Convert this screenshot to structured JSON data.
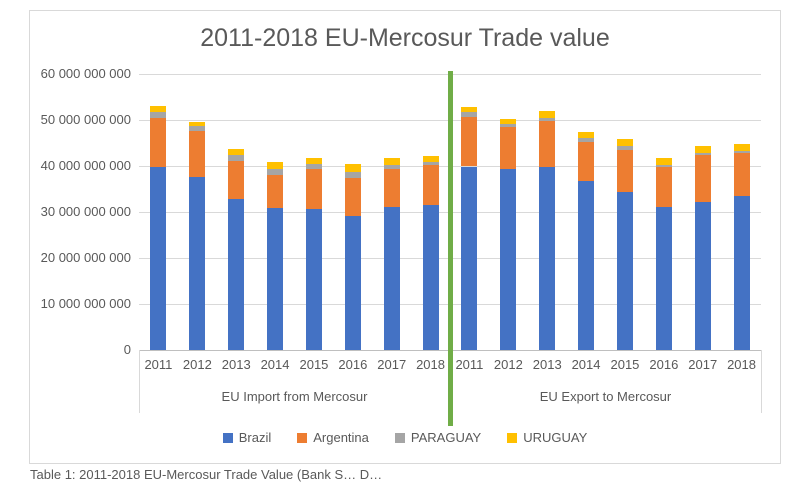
{
  "caption": "Table 1: 2011-2018 EU-Mercosur Trade Value (Bank S… D…",
  "chart_data": {
    "type": "bar",
    "stacked": true,
    "title": "2011-2018 EU-Mercosur Trade value",
    "xlabel": "",
    "ylabel": "",
    "grid": true,
    "y_axis": {
      "min": 0,
      "max": 60000000000,
      "tick_step": 10000000000,
      "tick_labels": [
        "0",
        "10 000 000 000",
        "20 000 000 000",
        "30 000 000 000",
        "40 000 000 000",
        "50 000 000 000",
        "60 000 000 000"
      ]
    },
    "categories": [
      "2011",
      "2012",
      "2013",
      "2014",
      "2015",
      "2016",
      "2017",
      "2018"
    ],
    "groups": [
      {
        "label": "EU Import from Mercosur",
        "series": [
          {
            "name": "Brazil",
            "values": [
              39700000000,
              37700000000,
              32800000000,
              30900000000,
              30700000000,
              29100000000,
              31000000000,
              31500000000
            ]
          },
          {
            "name": "Argentina",
            "values": [
              10800000000,
              9900000000,
              8400000000,
              7200000000,
              8600000000,
              8400000000,
              8400000000,
              8700000000
            ]
          },
          {
            "name": "PARAGUAY",
            "values": [
              1200000000,
              1100000000,
              1200000000,
              1300000000,
              1100000000,
              1300000000,
              900000000,
              700000000
            ]
          },
          {
            "name": "URUGUAY",
            "values": [
              1300000000,
              900000000,
              1200000000,
              1500000000,
              1400000000,
              1600000000,
              1500000000,
              1300000000
            ]
          }
        ]
      },
      {
        "label": "EU Export to Mercosur",
        "series": [
          {
            "name": "Brazil",
            "values": [
              39900000000,
              39400000000,
              39700000000,
              36700000000,
              34300000000,
              31100000000,
              32200000000,
              33400000000
            ]
          },
          {
            "name": "Argentina",
            "values": [
              10800000000,
              9100000000,
              10100000000,
              8500000000,
              9100000000,
              8600000000,
              10100000000,
              9400000000
            ]
          },
          {
            "name": "PARAGUAY",
            "values": [
              1100000000,
              700000000,
              700000000,
              800000000,
              900000000,
              500000000,
              600000000,
              500000000
            ]
          },
          {
            "name": "URUGUAY",
            "values": [
              1100000000,
              1100000000,
              1500000000,
              1400000000,
              1600000000,
              1500000000,
              1400000000,
              1600000000
            ]
          }
        ]
      }
    ],
    "legend": {
      "position": "bottom",
      "items": [
        {
          "label": "Brazil",
          "color": "#4472C4"
        },
        {
          "label": "Argentina",
          "color": "#ED7D31"
        },
        {
          "label": "PARAGUAY",
          "color": "#A5A5A5"
        },
        {
          "label": "URUGUAY",
          "color": "#FFC000"
        }
      ]
    },
    "separator": {
      "description": "vertical green line between the two groups",
      "color": "#70AD47"
    },
    "colors": {
      "grid": "#D9D9D9",
      "axis_line": "#BFBFBF",
      "text": "#595959",
      "frame_border": "#D9D9D9"
    }
  }
}
